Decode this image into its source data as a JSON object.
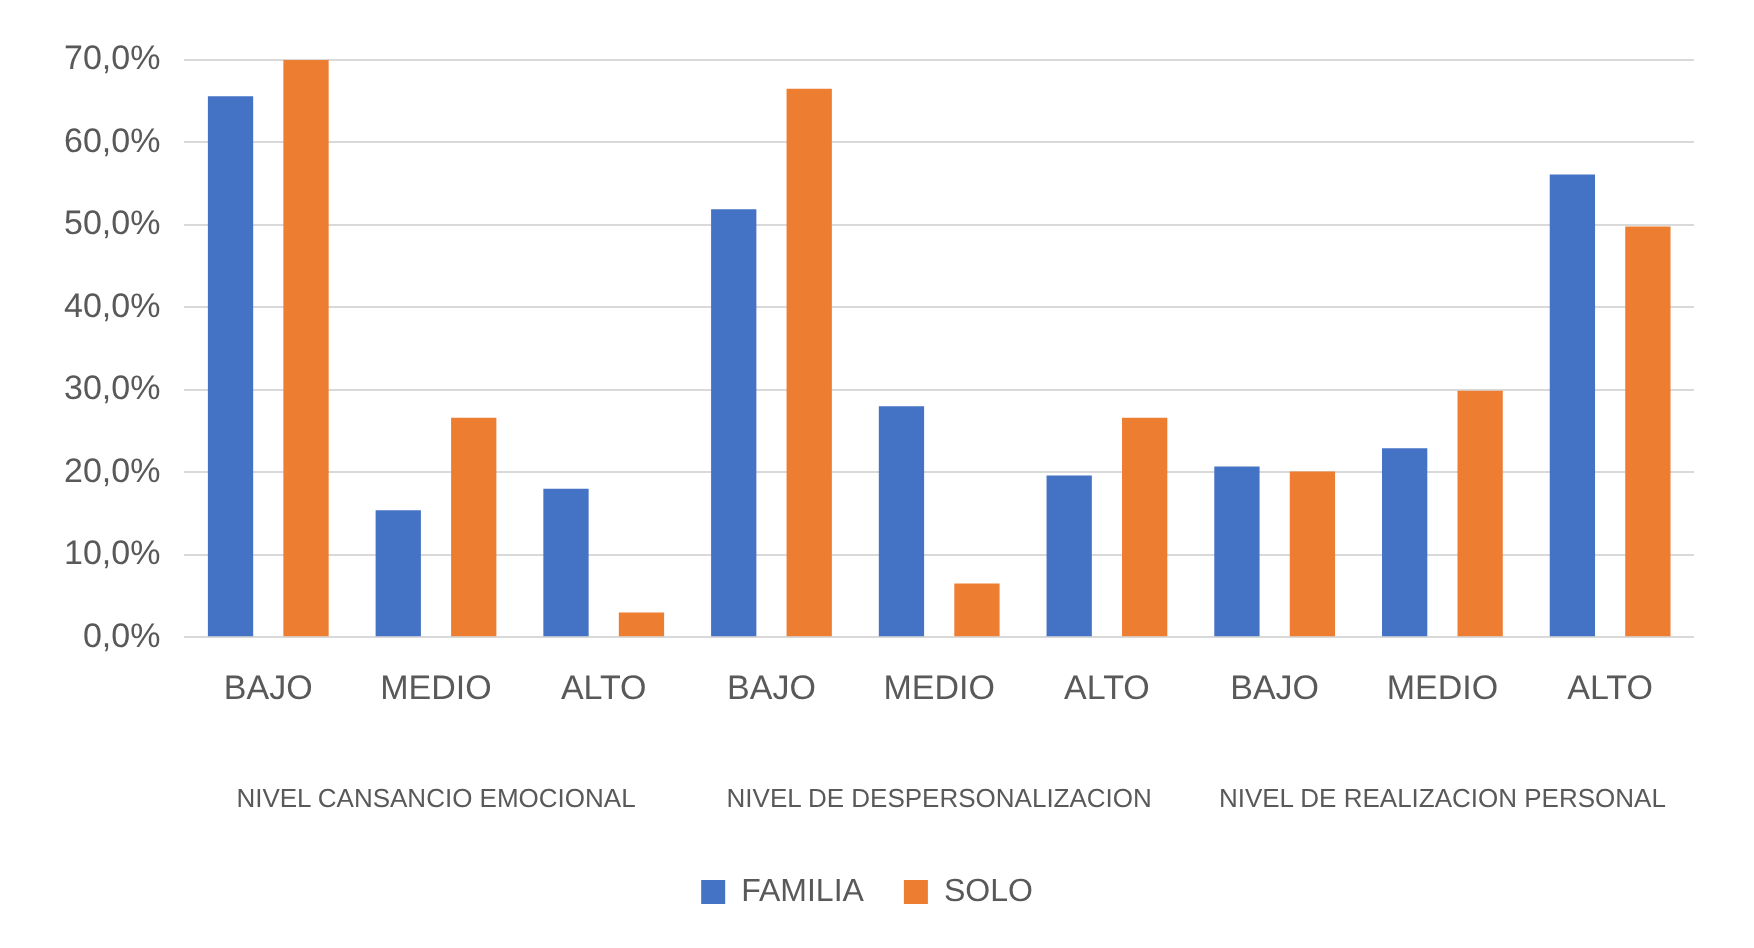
{
  "chart_data": {
    "type": "bar",
    "categories": [
      "BAJO",
      "MEDIO",
      "ALTO",
      "BAJO",
      "MEDIO",
      "ALTO",
      "BAJO",
      "MEDIO",
      "ALTO"
    ],
    "series": [
      {
        "name": "FAMILIA",
        "color": "#4472c4",
        "values": [
          65.6,
          15.4,
          18.0,
          51.9,
          28.0,
          19.6,
          20.7,
          22.9,
          56.1
        ]
      },
      {
        "name": "SOLO",
        "color": "#ed7d31",
        "values": [
          70.0,
          26.6,
          3.0,
          66.5,
          6.5,
          26.6,
          20.1,
          29.9,
          49.8
        ]
      }
    ],
    "annotations": [
      "NIVEL CANSANCIO EMOCIONAL",
      "NIVEL DE DESPERSONALIZACION",
      "NIVEL DE REALIZACION PERSONAL"
    ],
    "ylim": [
      0,
      70
    ],
    "yticks": [
      {
        "value": 0,
        "label": "0,0%"
      },
      {
        "value": 10,
        "label": "10,0%"
      },
      {
        "value": 20,
        "label": "20,0%"
      },
      {
        "value": 30,
        "label": "30,0%"
      },
      {
        "value": 40,
        "label": "40,0%"
      },
      {
        "value": 50,
        "label": "50,0%"
      },
      {
        "value": 60,
        "label": "60,0%"
      },
      {
        "value": 70,
        "label": "70,0%"
      }
    ],
    "grid": "y",
    "legend": "bottom"
  }
}
